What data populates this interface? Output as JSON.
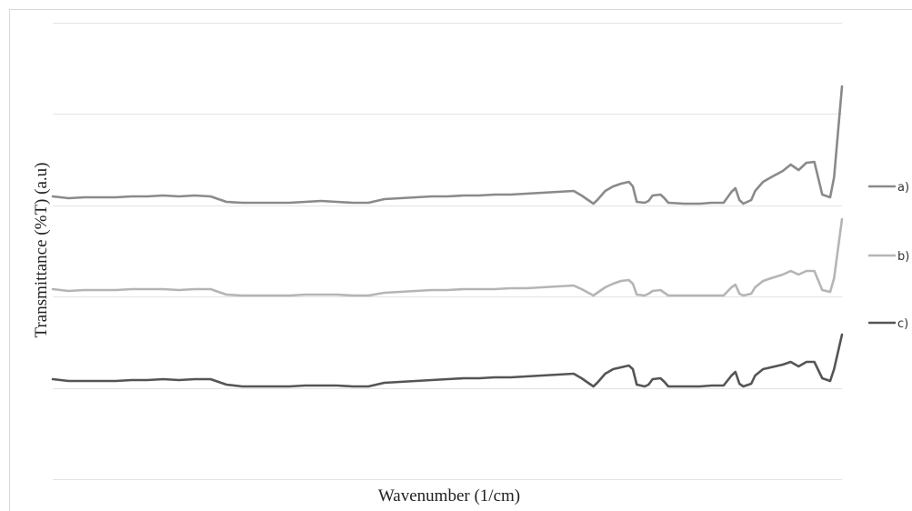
{
  "chart_data": {
    "type": "line",
    "title": "",
    "xlabel": "Wavenumber (1/cm)",
    "ylabel": "Transmittance (%T) (a.u)",
    "grid": true,
    "legend_position": "right",
    "series": [
      {
        "name": "a)",
        "color": "#8a8a8a",
        "x": [
          0,
          0.02,
          0.04,
          0.06,
          0.08,
          0.1,
          0.12,
          0.14,
          0.16,
          0.18,
          0.2,
          0.22,
          0.24,
          0.26,
          0.28,
          0.3,
          0.32,
          0.34,
          0.36,
          0.38,
          0.4,
          0.42,
          0.44,
          0.46,
          0.48,
          0.5,
          0.52,
          0.54,
          0.56,
          0.58,
          0.6,
          0.62,
          0.64,
          0.66,
          0.67,
          0.685,
          0.69,
          0.7,
          0.71,
          0.72,
          0.73,
          0.735,
          0.74,
          0.75,
          0.755,
          0.76,
          0.77,
          0.775,
          0.78,
          0.8,
          0.82,
          0.835,
          0.85,
          0.86,
          0.865,
          0.87,
          0.875,
          0.885,
          0.89,
          0.9,
          0.91,
          0.925,
          0.935,
          0.945,
          0.955,
          0.965,
          0.975,
          0.985,
          0.99,
          1
        ],
        "values": [
          0.09,
          0.07,
          0.08,
          0.08,
          0.08,
          0.09,
          0.09,
          0.1,
          0.09,
          0.1,
          0.09,
          0.03,
          0.02,
          0.02,
          0.02,
          0.02,
          0.03,
          0.04,
          0.03,
          0.02,
          0.02,
          0.06,
          0.07,
          0.08,
          0.09,
          0.09,
          0.1,
          0.1,
          0.11,
          0.11,
          0.12,
          0.13,
          0.14,
          0.15,
          0.1,
          0.01,
          0.05,
          0.15,
          0.2,
          0.23,
          0.25,
          0.2,
          0.03,
          0.02,
          0.04,
          0.1,
          0.11,
          0.07,
          0.02,
          0.01,
          0.01,
          0.02,
          0.02,
          0.14,
          0.18,
          0.05,
          0.01,
          0.05,
          0.15,
          0.25,
          0.3,
          0.37,
          0.44,
          0.38,
          0.46,
          0.47,
          0.11,
          0.08,
          0.3,
          1.3
        ]
      },
      {
        "name": "b)",
        "color": "#b5b5b5",
        "x": [
          0,
          0.02,
          0.04,
          0.06,
          0.08,
          0.1,
          0.12,
          0.14,
          0.16,
          0.18,
          0.2,
          0.22,
          0.24,
          0.26,
          0.28,
          0.3,
          0.32,
          0.34,
          0.36,
          0.38,
          0.4,
          0.42,
          0.44,
          0.46,
          0.48,
          0.5,
          0.52,
          0.54,
          0.56,
          0.58,
          0.6,
          0.62,
          0.64,
          0.66,
          0.67,
          0.685,
          0.69,
          0.7,
          0.71,
          0.72,
          0.73,
          0.735,
          0.74,
          0.75,
          0.755,
          0.76,
          0.77,
          0.775,
          0.78,
          0.8,
          0.82,
          0.835,
          0.85,
          0.86,
          0.865,
          0.87,
          0.875,
          0.885,
          0.89,
          0.9,
          0.91,
          0.925,
          0.935,
          0.945,
          0.955,
          0.965,
          0.975,
          0.985,
          0.99,
          1
        ],
        "values": [
          0.08,
          0.06,
          0.07,
          0.07,
          0.07,
          0.08,
          0.08,
          0.08,
          0.07,
          0.08,
          0.08,
          0.02,
          0.01,
          0.01,
          0.01,
          0.01,
          0.02,
          0.02,
          0.02,
          0.01,
          0.01,
          0.04,
          0.05,
          0.06,
          0.07,
          0.07,
          0.08,
          0.08,
          0.08,
          0.09,
          0.09,
          0.1,
          0.11,
          0.12,
          0.08,
          0.01,
          0.04,
          0.1,
          0.14,
          0.17,
          0.18,
          0.14,
          0.02,
          0.01,
          0.03,
          0.06,
          0.07,
          0.04,
          0.01,
          0.01,
          0.01,
          0.01,
          0.01,
          0.1,
          0.13,
          0.03,
          0.01,
          0.03,
          0.1,
          0.17,
          0.2,
          0.24,
          0.28,
          0.24,
          0.28,
          0.28,
          0.07,
          0.05,
          0.2,
          0.85
        ]
      },
      {
        "name": "c)",
        "color": "#555555",
        "x": [
          0,
          0.02,
          0.04,
          0.06,
          0.08,
          0.1,
          0.12,
          0.14,
          0.16,
          0.18,
          0.2,
          0.22,
          0.24,
          0.26,
          0.28,
          0.3,
          0.32,
          0.34,
          0.36,
          0.38,
          0.4,
          0.42,
          0.44,
          0.46,
          0.48,
          0.5,
          0.52,
          0.54,
          0.56,
          0.58,
          0.6,
          0.62,
          0.64,
          0.66,
          0.67,
          0.685,
          0.69,
          0.7,
          0.71,
          0.72,
          0.73,
          0.735,
          0.74,
          0.75,
          0.755,
          0.76,
          0.77,
          0.775,
          0.78,
          0.8,
          0.82,
          0.835,
          0.85,
          0.86,
          0.865,
          0.87,
          0.875,
          0.885,
          0.89,
          0.9,
          0.91,
          0.925,
          0.935,
          0.945,
          0.955,
          0.965,
          0.975,
          0.985,
          0.99,
          1
        ],
        "values": [
          0.09,
          0.07,
          0.07,
          0.07,
          0.07,
          0.08,
          0.08,
          0.09,
          0.08,
          0.09,
          0.09,
          0.03,
          0.01,
          0.01,
          0.01,
          0.01,
          0.02,
          0.02,
          0.02,
          0.01,
          0.01,
          0.05,
          0.06,
          0.07,
          0.08,
          0.09,
          0.1,
          0.1,
          0.11,
          0.11,
          0.12,
          0.13,
          0.14,
          0.15,
          0.1,
          0.01,
          0.05,
          0.15,
          0.2,
          0.22,
          0.24,
          0.2,
          0.03,
          0.01,
          0.03,
          0.09,
          0.1,
          0.06,
          0.01,
          0.01,
          0.01,
          0.02,
          0.02,
          0.13,
          0.17,
          0.04,
          0.01,
          0.04,
          0.13,
          0.2,
          0.22,
          0.25,
          0.28,
          0.23,
          0.28,
          0.28,
          0.1,
          0.07,
          0.2,
          0.58
        ]
      }
    ]
  }
}
